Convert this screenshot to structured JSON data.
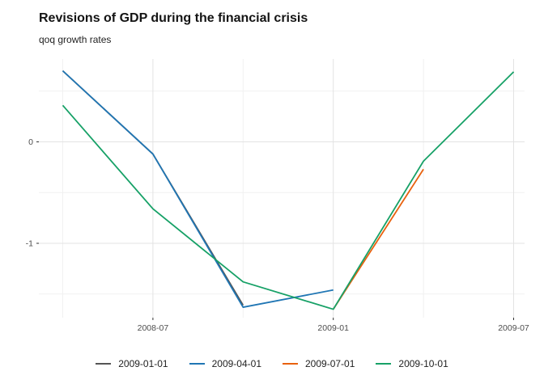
{
  "header": {
    "title": "Revisions of GDP during the financial crisis",
    "subtitle": "qoq growth rates"
  },
  "chart_data": {
    "type": "line",
    "title": "Revisions of GDP during the financial crisis",
    "subtitle": "qoq growth rates",
    "xlabel": "",
    "ylabel": "",
    "x_categories": [
      "2008-04",
      "2008-07",
      "2008-10",
      "2009-01",
      "2009-04",
      "2009-07"
    ],
    "x_tick_labels": [
      {
        "label": "2008-07",
        "index": 1
      },
      {
        "label": "2009-01",
        "index": 3
      },
      {
        "label": "2009-07",
        "index": 5
      }
    ],
    "y_ticks": [
      {
        "label": "0",
        "value": 0
      },
      {
        "label": "-1",
        "value": -1
      }
    ],
    "ylim": [
      -1.73,
      0.82
    ],
    "grid": {
      "on": true,
      "major_color": "#e3e3e3",
      "minor_color": "#f1f1f1",
      "major_y_values": [
        0,
        -1
      ],
      "minor_y_values": [
        0.5,
        -0.5,
        -1.5
      ],
      "major_x_indices": [
        1,
        3,
        5
      ],
      "minor_x_indices": [
        0,
        2,
        4
      ]
    },
    "axis": {
      "tick_color": "#333333",
      "label_color": "#4d4d4d"
    },
    "legend_position": "bottom",
    "series": [
      {
        "name": "2009-01-01",
        "color": "#555555",
        "points": [
          {
            "x": "2008-04",
            "y": 0.7
          },
          {
            "x": "2008-07",
            "y": -0.12
          },
          {
            "x": "2008-10",
            "y": -1.61
          }
        ]
      },
      {
        "name": "2009-04-01",
        "color": "#2076b4",
        "points": [
          {
            "x": "2008-04",
            "y": 0.7
          },
          {
            "x": "2008-07",
            "y": -0.12
          },
          {
            "x": "2008-10",
            "y": -1.63
          },
          {
            "x": "2009-01",
            "y": -1.46
          }
        ]
      },
      {
        "name": "2009-07-01",
        "color": "#e8610e",
        "points": [
          {
            "x": "2009-01",
            "y": -1.65
          },
          {
            "x": "2009-04",
            "y": -0.27
          }
        ]
      },
      {
        "name": "2009-10-01",
        "color": "#17a167",
        "points": [
          {
            "x": "2008-04",
            "y": 0.36
          },
          {
            "x": "2008-07",
            "y": -0.66
          },
          {
            "x": "2008-10",
            "y": -1.38
          },
          {
            "x": "2009-01",
            "y": -1.65
          },
          {
            "x": "2009-04",
            "y": -0.19
          },
          {
            "x": "2009-07",
            "y": 0.69
          }
        ]
      }
    ]
  }
}
